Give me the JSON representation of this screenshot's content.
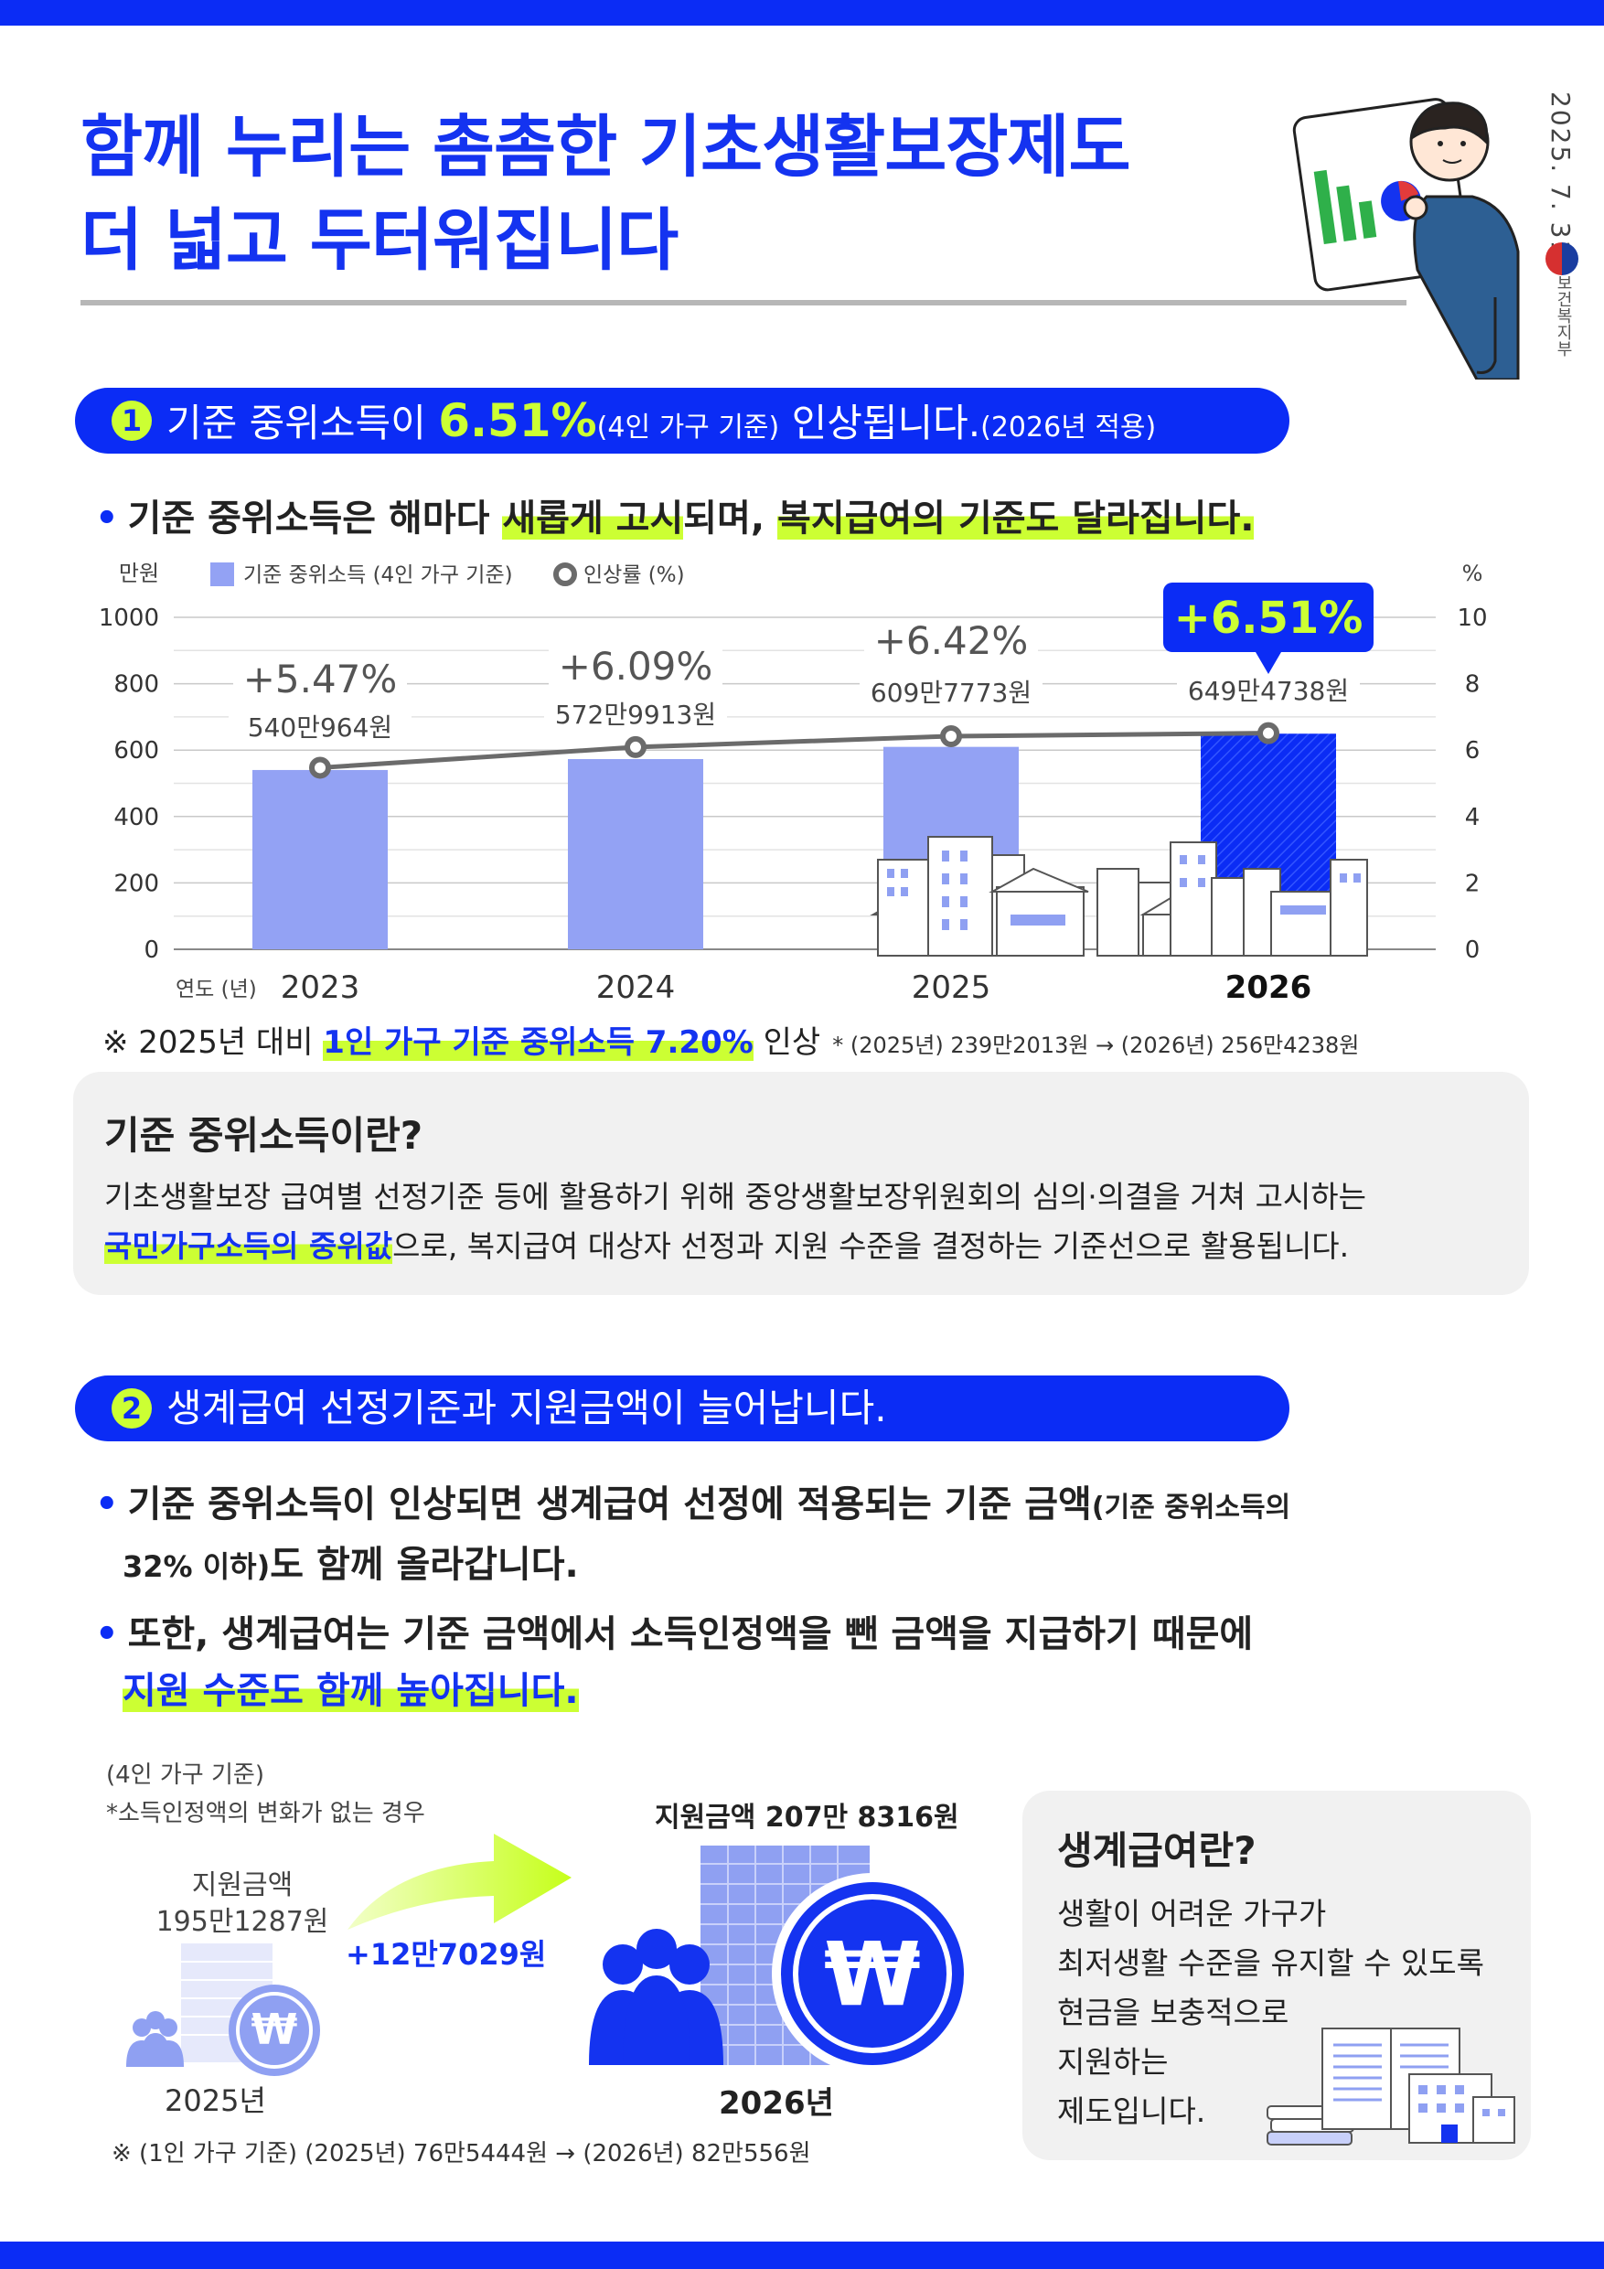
{
  "header": {
    "title_line1": "함께 누리는 촘촘한 기초생활보장제도",
    "title_line2": "더 넓고 두터워집니다",
    "date": "2025. 7. 31.",
    "ministry": "보건복지부"
  },
  "section1": {
    "number": "1",
    "pill_text_a": "기준 중위소득이 ",
    "pill_rate": "6.51%",
    "pill_text_b": "(4인 가구 기준)",
    "pill_text_c": " 인상됩니다.",
    "pill_text_d": "(2026년 적용)",
    "bullet_a": "기준 중위소득은 해마다 ",
    "bullet_hl1": "새롭게 고시",
    "bullet_b": "되며, ",
    "bullet_hl2": "복지급여의 기준도 달라집니다."
  },
  "chart_data": {
    "type": "bar",
    "left_unit": "만원",
    "right_unit": "%",
    "x_axis_label": "연도 (년)",
    "legend": [
      {
        "name": "기준 중위소득 (4인 가구 기준)",
        "color": "#93a2f4"
      },
      {
        "name": "인상률 (%)",
        "color": "#6b6b6b"
      }
    ],
    "categories": [
      "2023",
      "2024",
      "2025",
      "2026"
    ],
    "series": [
      {
        "name": "기준 중위소득 (4인 가구 기준)",
        "type": "bar",
        "values": [
          540.0964,
          572.9913,
          609.7773,
          649.4738
        ]
      },
      {
        "name": "인상률 (%)",
        "type": "line",
        "values": [
          5.47,
          6.09,
          6.42,
          6.51
        ]
      }
    ],
    "value_labels": [
      "540만964원",
      "572만9913원",
      "609만7773원",
      "649만4738원"
    ],
    "rate_labels": [
      "+5.47%",
      "+6.09%",
      "+6.42%",
      "+6.51%"
    ],
    "ylim_left": [
      0,
      1000
    ],
    "yticks_left": [
      0,
      200,
      400,
      600,
      800,
      1000
    ],
    "ylim_right": [
      0,
      10
    ],
    "yticks_right": [
      0,
      2,
      4,
      6,
      8,
      10
    ],
    "grid": true,
    "highlight_category": "2026",
    "colors": {
      "bar": "#93a2f4",
      "bar_highlight": "#0b2cf5",
      "line": "#6b6b6b",
      "badge": "#0b2cf5"
    }
  },
  "note1": {
    "prefix": "※ 2025년 대비 ",
    "highlight": "1인 가구 기준 중위소득 7.20%",
    "suffix": " 인상",
    "detail": "* (2025년) 239만2013원 → (2026년) 256만4238원"
  },
  "infobox": {
    "title": "기준 중위소득이란?",
    "line1": "기초생활보장 급여별 선정기준 등에 활용하기 위해 중앙생활보장위원회의 심의·의결을 거쳐 고시하는",
    "line2_hl": "국민가구소득의 중위값",
    "line2": "으로, 복지급여 대상자 선정과 지원 수준을 결정하는 기준선으로 활용됩니다."
  },
  "section2": {
    "number": "2",
    "pill_text": "생계급여 선정기준과 지원금액이 늘어납니다.",
    "bullet1_a": "기준 중위소득이 인상되면 생계급여 선정에 적용되는 기준 금액",
    "bullet1_small": "(기준 중위소득의",
    "bullet1_b_small": "32% 이하)",
    "bullet1_c": "도 함께 올라갑니다.",
    "bullet2_a": "또한, 생계급여는 기준 금액에서 소득인정액을 뺀 금액을 지급하기 때문에",
    "bullet2_hl": "지원 수준도 함께 높아집니다."
  },
  "benefit": {
    "note_a": "(4인 가구 기준)",
    "note_b": "*소득인정액의 변화가 없는 경우",
    "before_label": "지원금액",
    "before_amount": "195만1287원",
    "before_year": "2025년",
    "increase": "+12만7029원",
    "after_label": "지원금액 207만 8316원",
    "after_year": "2026년",
    "footnote": "※ (1인 가구 기준) (2025년) 76만5444원 → (2026년) 82만556원",
    "won_symbol": "₩"
  },
  "sidebox": {
    "title": "생계급여란?",
    "line1": "생활이 어려운 가구가",
    "line2": "최저생활 수준을 유지할 수 있도록",
    "line3": "현금을 보충적으로",
    "line4": "지원하는",
    "line5": "제도입니다."
  }
}
